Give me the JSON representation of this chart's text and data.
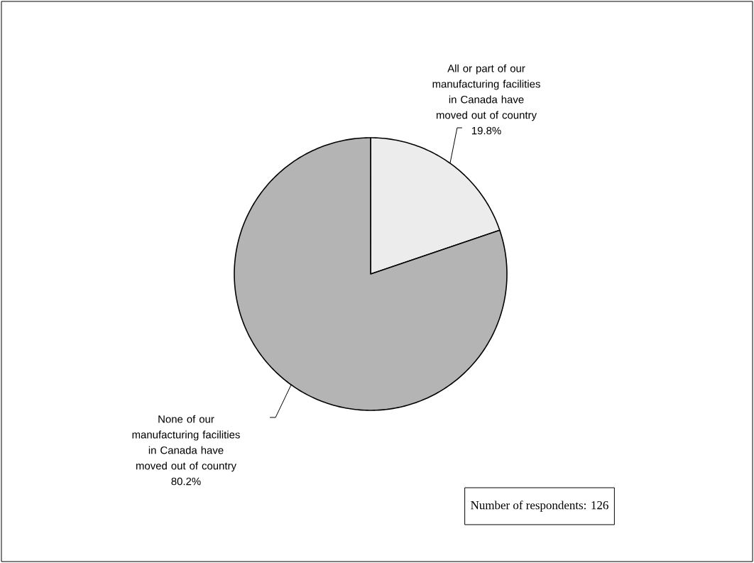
{
  "chart_data": {
    "type": "pie",
    "categories": [
      "All or part of our manufacturing facilities in Canada have moved out of country",
      "None of our manufacturing facilities in Canada have moved out of country"
    ],
    "values": [
      19.8,
      80.2
    ],
    "value_labels": [
      "19.8%",
      "80.2%"
    ],
    "colors": [
      "#ececec",
      "#b4b4b4"
    ],
    "annotations": [
      "Number of respondents: 126"
    ]
  }
}
